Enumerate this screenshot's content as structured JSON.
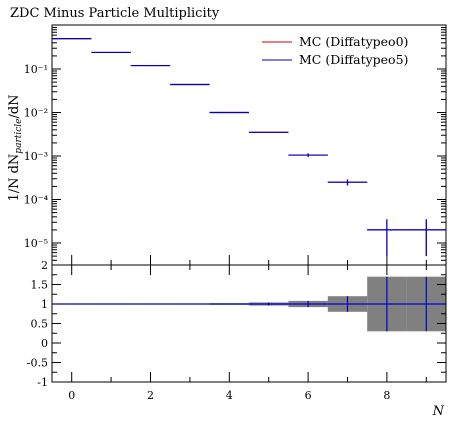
{
  "chart_data": [
    {
      "type": "scatter",
      "title": "ZDC Minus Particle Multiplicity",
      "ylabel": "1/N dN_particle/dN",
      "xlabel": "",
      "yscale": "log",
      "ylim": [
        5e-06,
        0.9
      ],
      "xlim": [
        -0.5,
        9.5
      ],
      "grid": false,
      "legend_position": "top-right",
      "x_bins": [
        [
          -0.5,
          0.5
        ],
        [
          0.5,
          1.5
        ],
        [
          1.5,
          2.5
        ],
        [
          2.5,
          3.5
        ],
        [
          3.5,
          4.5
        ],
        [
          4.5,
          5.5
        ],
        [
          5.5,
          6.5
        ],
        [
          6.5,
          7.5
        ],
        [
          7.5,
          8.5
        ],
        [
          8.5,
          9.5
        ]
      ],
      "series": [
        {
          "name": "MC (Diffatypeo0)",
          "color": "#cc0000",
          "values": [
            0.5,
            0.24,
            0.12,
            0.044,
            0.01,
            0.0035,
            0.00105,
            0.00025,
            2e-05,
            2e-05
          ],
          "errors": [
            0,
            0,
            0,
            0,
            0,
            0,
            0.0001,
            4e-05,
            1.5e-05,
            1.5e-05
          ]
        },
        {
          "name": "MC (Diffatypeo5)",
          "color": "#0000cc",
          "values": [
            0.5,
            0.24,
            0.12,
            0.044,
            0.01,
            0.0035,
            0.00105,
            0.00025,
            2e-05,
            2e-05
          ],
          "errors": [
            0,
            0,
            0,
            0,
            0,
            0,
            0.0001,
            4e-05,
            1.5e-05,
            1.5e-05
          ]
        }
      ],
      "y_ticks": [
        "10⁻⁵",
        "10⁻⁴",
        "10⁻³",
        "10⁻²",
        "10⁻¹"
      ]
    },
    {
      "type": "scatter",
      "title": "",
      "xlabel": "N",
      "ylabel": "",
      "ylim": [
        -1,
        2
      ],
      "xlim": [
        -0.5,
        9.5
      ],
      "x_ticks": [
        "0",
        "2",
        "4",
        "6",
        "8"
      ],
      "y_ticks": [
        "-1",
        "-0.5",
        "0",
        "0.5",
        "1",
        "1.5",
        "2"
      ],
      "ratio_values": [
        1,
        1,
        1,
        1,
        1,
        1,
        1,
        1,
        1,
        1
      ],
      "ratio_errors": [
        0,
        0,
        0.005,
        0.01,
        0.02,
        0.04,
        0.08,
        0.2,
        0.7,
        0.7
      ],
      "band_color": "#808080"
    }
  ]
}
